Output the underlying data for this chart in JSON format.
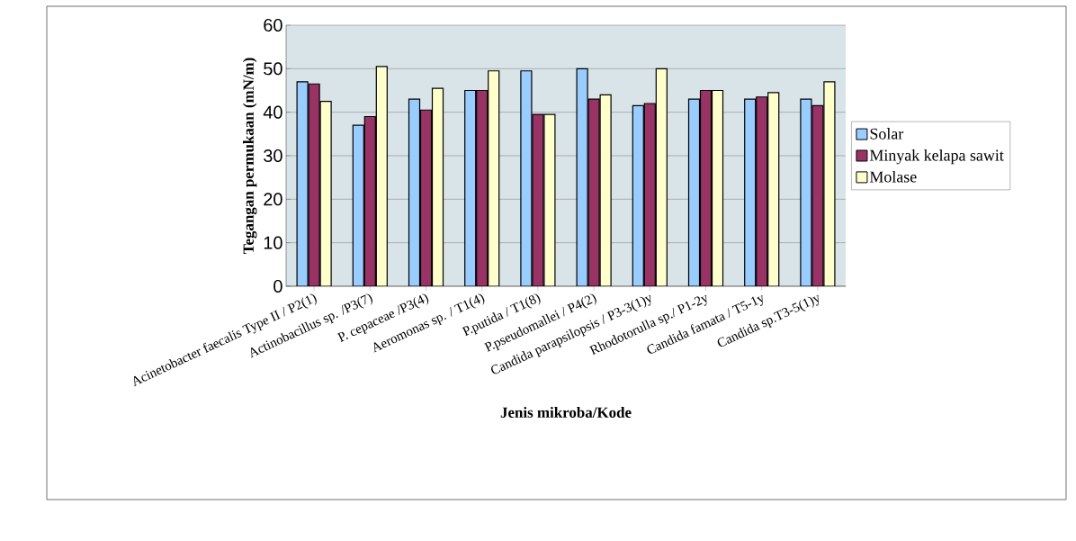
{
  "chart_data": {
    "type": "bar",
    "xlabel": "Jenis mikroba/Kode",
    "ylabel": "Tegangan permukaan (mN/m)",
    "categories": [
      "Acinetobacter faecalis Type II / P2(1)",
      "Actinobacillus sp. /P3(7)",
      "P. cepaceae /P3(4)",
      "Aeromonas sp. / T1(4)",
      "P.putida / T1(8)",
      "P.pseudomallei / P4(2)",
      "Candida parapsilopsis / P3-3(1)y",
      "Rhodotorulla sp./ P1-2y",
      "Candida famata / T5-1y",
      "Candida sp.T3-5(1)y"
    ],
    "series": [
      {
        "name": "Solar",
        "color": "#99ccff",
        "values": [
          47,
          37,
          43,
          45,
          49.5,
          50,
          41.5,
          43,
          43,
          43
        ]
      },
      {
        "name": "Minyak kelapa sawit",
        "color": "#993366",
        "values": [
          46.5,
          39,
          40.5,
          45,
          39.5,
          43,
          42,
          45,
          43.5,
          41.5
        ]
      },
      {
        "name": "Molase",
        "color": "#ffffcc",
        "values": [
          42.5,
          50.5,
          45.5,
          49.5,
          39.5,
          44,
          50,
          45,
          44.5,
          47
        ]
      }
    ],
    "ylim": [
      0,
      60
    ],
    "yticks": [
      0,
      10,
      20,
      30,
      40,
      50,
      60
    ],
    "grid": "y",
    "legend": "right"
  }
}
